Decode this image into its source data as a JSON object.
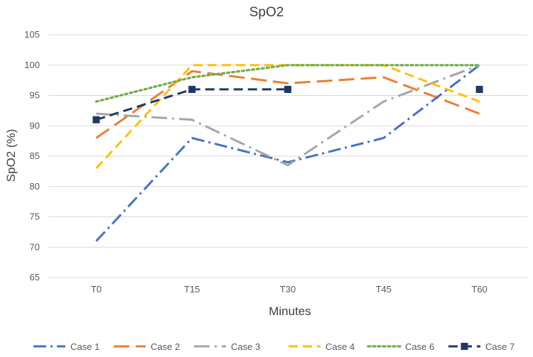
{
  "chart_data": {
    "type": "line",
    "title": "SpO2",
    "xlabel": "Minutes",
    "ylabel": "SpO2 (%)",
    "categories": [
      "T0",
      "T15",
      "T30",
      "T45",
      "T60"
    ],
    "ylim": [
      65,
      105
    ],
    "ytick_step": 5,
    "grid": true,
    "legend_position": "bottom",
    "series": [
      {
        "name": "Case 1",
        "values": [
          71,
          88,
          84,
          88,
          100
        ],
        "color": "#4472C4",
        "dash": "dashdot",
        "marker": "none"
      },
      {
        "name": "Case 2",
        "values": [
          88,
          99,
          97,
          98,
          92
        ],
        "color": "#ED7D31",
        "dash": "longdash",
        "marker": "none"
      },
      {
        "name": "Case 3",
        "values": [
          92,
          91,
          83.5,
          94,
          100
        ],
        "color": "#A5A5A5",
        "dash": "longdashdot",
        "marker": "none"
      },
      {
        "name": "Case 4",
        "values": [
          83,
          100,
          100,
          100,
          94
        ],
        "color": "#FFC000",
        "dash": "dash",
        "marker": "none"
      },
      {
        "name": "Case 6",
        "values": [
          94,
          98,
          100,
          100,
          100
        ],
        "color": "#70AD47",
        "dash": "dot",
        "marker": "none"
      },
      {
        "name": "Case 7",
        "values": [
          91,
          96,
          96,
          null,
          96
        ],
        "color": "#203864",
        "dash": "dash",
        "marker": "square"
      }
    ]
  }
}
